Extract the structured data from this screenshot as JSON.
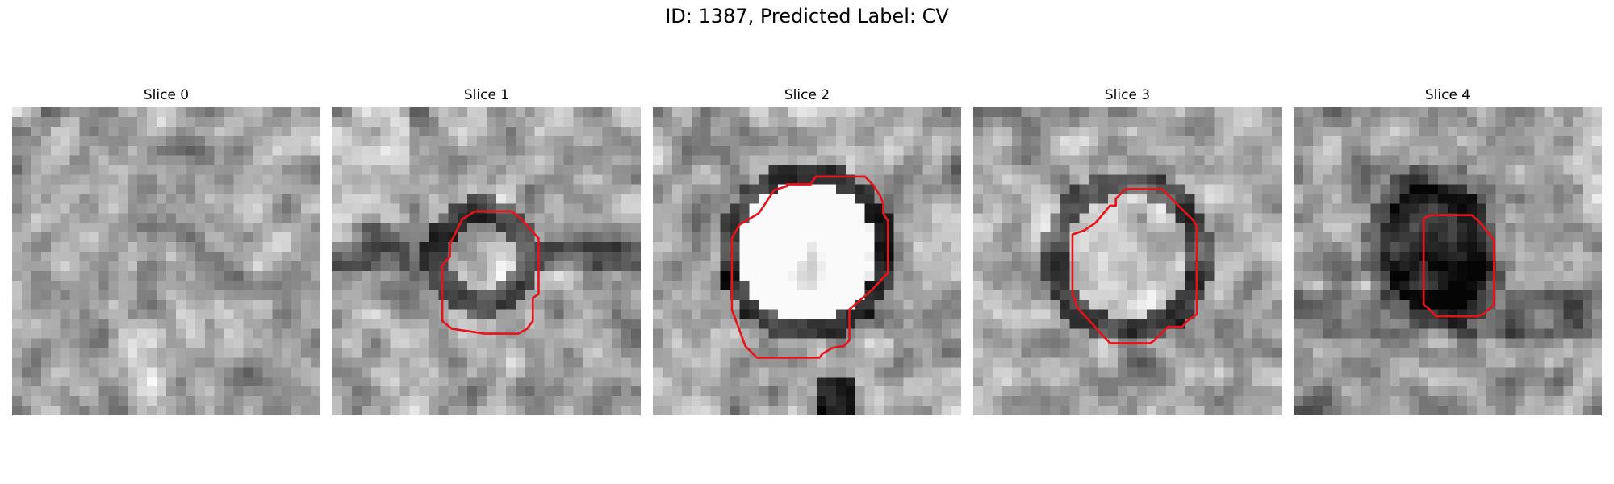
{
  "figure_title": "ID: 1387, Predicted Label: CV",
  "slices": [
    {
      "label": "Slice 0",
      "has_contour": false
    },
    {
      "label": "Slice 1",
      "has_contour": true
    },
    {
      "label": "Slice 2",
      "has_contour": true
    },
    {
      "label": "Slice 3",
      "has_contour": true
    },
    {
      "label": "Slice 4",
      "has_contour": true
    }
  ],
  "colors": {
    "contour": "#e8131a",
    "background": "#ffffff"
  }
}
